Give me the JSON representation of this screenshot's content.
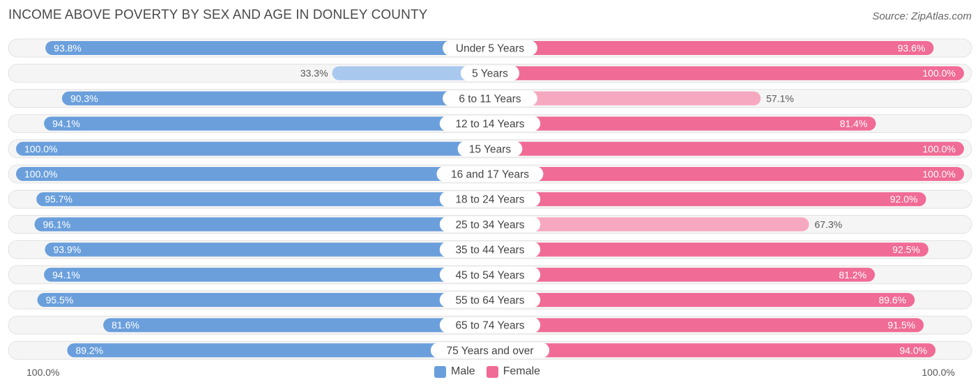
{
  "title": "INCOME ABOVE POVERTY BY SEX AND AGE IN DONLEY COUNTY",
  "source": "Source: ZipAtlas.com",
  "colors": {
    "male": "#6a9fdc",
    "male_light": "#a9c8ee",
    "female": "#f06b95",
    "female_light": "#f7a8c1",
    "track": "#efefef"
  },
  "axis": {
    "left_label": "100.0%",
    "right_label": "100.0%"
  },
  "legend": {
    "male": "Male",
    "female": "Female"
  },
  "chart_data": {
    "type": "bar",
    "title": "INCOME ABOVE POVERTY BY SEX AND AGE IN DONLEY COUNTY",
    "orientation": "horizontal-diverging",
    "xlim": [
      0,
      100
    ],
    "categories": [
      "Under 5 Years",
      "5 Years",
      "6 to 11 Years",
      "12 to 14 Years",
      "15 Years",
      "16 and 17 Years",
      "18 to 24 Years",
      "25 to 34 Years",
      "35 to 44 Years",
      "45 to 54 Years",
      "55 to 64 Years",
      "65 to 74 Years",
      "75 Years and over"
    ],
    "series": [
      {
        "name": "Male",
        "values": [
          93.8,
          33.3,
          90.3,
          94.1,
          100.0,
          100.0,
          95.7,
          96.1,
          93.9,
          94.1,
          95.5,
          81.6,
          89.2
        ],
        "labels": [
          "93.8%",
          "33.3%",
          "90.3%",
          "94.1%",
          "100.0%",
          "100.0%",
          "95.7%",
          "96.1%",
          "93.9%",
          "94.1%",
          "95.5%",
          "81.6%",
          "89.2%"
        ]
      },
      {
        "name": "Female",
        "values": [
          93.6,
          100.0,
          57.1,
          81.4,
          100.0,
          100.0,
          92.0,
          67.3,
          92.5,
          81.2,
          89.6,
          91.5,
          94.0
        ],
        "labels": [
          "93.6%",
          "100.0%",
          "57.1%",
          "81.4%",
          "100.0%",
          "100.0%",
          "92.0%",
          "67.3%",
          "92.5%",
          "81.2%",
          "89.6%",
          "91.5%",
          "94.0%"
        ]
      }
    ]
  }
}
